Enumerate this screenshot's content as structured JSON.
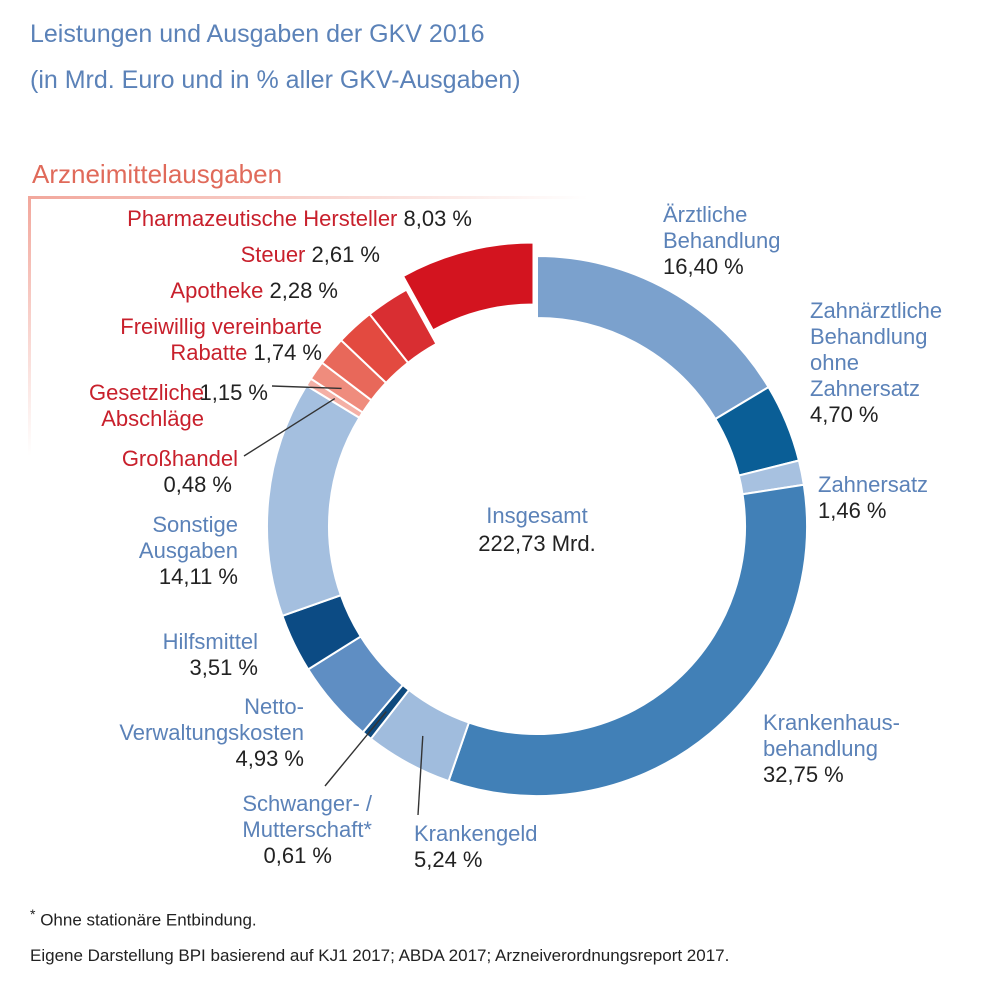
{
  "title": "Leistungen und Ausgaben der GKV 2016",
  "subtitle": "(in Mrd. Euro und in % aller GKV-Ausgaben)",
  "group_label": "Arzneimittelausgaben",
  "colors": {
    "title": "#5b82b8",
    "group_label": "#e06a5a",
    "red_text": "#c8202c",
    "blue_text": "#5b82b8",
    "value_text": "#222222"
  },
  "chart_data": {
    "type": "pie",
    "donut": true,
    "center_label": "Insgesamt",
    "center_value": "222,73 Mrd.",
    "slices": [
      {
        "key": "aerztlich",
        "label_lines": [
          "Ärztliche",
          "Behandlung"
        ],
        "value": 16.4,
        "value_text": "16,40 %",
        "color": "#7ba1cd",
        "group": "main"
      },
      {
        "key": "zahnaerztlich",
        "label_lines": [
          "Zahnärztliche",
          "Behandlung",
          "ohne",
          "Zahnersatz"
        ],
        "value": 4.7,
        "value_text": "4,70 %",
        "color": "#0a5e96",
        "group": "main"
      },
      {
        "key": "zahnersatz",
        "label_lines": [
          "Zahnersatz"
        ],
        "value": 1.46,
        "value_text": "1,46 %",
        "color": "#a7c1e0",
        "group": "main"
      },
      {
        "key": "krankenhaus",
        "label_lines": [
          "Krankenhaus-",
          "behandlung"
        ],
        "value": 32.75,
        "value_text": "32,75 %",
        "color": "#4180b7",
        "group": "main"
      },
      {
        "key": "krankengeld",
        "label_lines": [
          "Krankengeld"
        ],
        "value": 5.24,
        "value_text": "5,24 %",
        "color": "#a0bcdd",
        "group": "main"
      },
      {
        "key": "schwanger",
        "label_lines": [
          "Schwanger- /",
          "Mutterschaft*"
        ],
        "value": 0.61,
        "value_text": "0,61 %",
        "color": "#0e4a7e",
        "group": "main"
      },
      {
        "key": "netto",
        "label_lines": [
          "Netto-",
          "Verwaltungskosten"
        ],
        "value": 4.93,
        "value_text": "4,93 %",
        "color": "#5f8ec3",
        "group": "main"
      },
      {
        "key": "hilfsmittel",
        "label_lines": [
          "Hilfsmittel"
        ],
        "value": 3.51,
        "value_text": "3,51 %",
        "color": "#0c4b84",
        "group": "main"
      },
      {
        "key": "sonstige",
        "label_lines": [
          "Sonstige",
          "Ausgaben"
        ],
        "value": 14.11,
        "value_text": "14,11 %",
        "color": "#a4bfdf",
        "group": "main"
      },
      {
        "key": "grosshandel",
        "label_lines": [
          "Großhandel"
        ],
        "value": 0.48,
        "value_text": "0,48 %",
        "color": "#f4b0a6",
        "group": "arznei"
      },
      {
        "key": "abschlaege",
        "label_lines": [
          "Gesetzliche",
          "Abschläge"
        ],
        "value": 1.15,
        "value_text": "1,15 %",
        "color": "#ef8c7d",
        "group": "arznei"
      },
      {
        "key": "rabatte",
        "label_lines": [
          "Freiwillig vereinbarte",
          "Rabatte"
        ],
        "value": 1.74,
        "value_text": "1,74 %",
        "color": "#e8685a",
        "group": "arznei"
      },
      {
        "key": "apotheke",
        "label_lines": [
          "Apotheke"
        ],
        "value": 2.28,
        "value_text": "2,28 %",
        "color": "#e34a40",
        "group": "arznei"
      },
      {
        "key": "steuer",
        "label_lines": [
          "Steuer"
        ],
        "value": 2.61,
        "value_text": "2,61 %",
        "color": "#d92e32",
        "group": "arznei"
      },
      {
        "key": "hersteller",
        "label_lines": [
          "Pharmazeutische Hersteller"
        ],
        "value": 8.03,
        "value_text": "8,03 %",
        "color": "#d3141f",
        "group": "arznei"
      }
    ]
  },
  "footnote": {
    "marker": "*",
    "text": "Ohne stationäre Entbindung."
  },
  "source": "Eigene Darstellung BPI basierend auf KJ1 2017; ABDA 2017; Arzneiverordnungsreport 2017."
}
